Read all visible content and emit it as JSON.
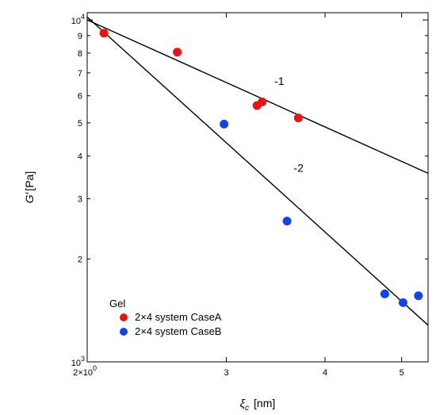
{
  "chart_data": {
    "type": "scatter",
    "title": "",
    "xlabel": {
      "symbol": "ξ",
      "sub": "c",
      "unit": "[nm]"
    },
    "ylabel": {
      "symbol": "G′",
      "unit": "[Pa]"
    },
    "xscale": "log",
    "yscale": "log",
    "xlim": [
      2,
      5.4
    ],
    "ylim": [
      1000,
      10500
    ],
    "x_ticks": [
      {
        "value": 2,
        "label": "2×10",
        "exp": "0"
      },
      {
        "value": 3,
        "label": "3"
      },
      {
        "value": 4,
        "label": "4"
      },
      {
        "value": 5,
        "label": "5"
      }
    ],
    "y_ticks": [
      {
        "value": 1000,
        "label": "10",
        "exp": "3"
      },
      {
        "value": 2000,
        "label": "2"
      },
      {
        "value": 3000,
        "label": "3"
      },
      {
        "value": 4000,
        "label": "4"
      },
      {
        "value": 5000,
        "label": "5"
      },
      {
        "value": 6000,
        "label": "6"
      },
      {
        "value": 7000,
        "label": "7"
      },
      {
        "value": 8000,
        "label": "8"
      },
      {
        "value": 9000,
        "label": "9"
      },
      {
        "value": 10000,
        "label": "10",
        "exp": "4"
      }
    ],
    "legend_title": "Gel",
    "legend_position": "bottom-left",
    "series": [
      {
        "name": "2×4 system CaseA",
        "color": "#ee1111",
        "points": [
          {
            "x": 2.1,
            "y": 9150
          },
          {
            "x": 2.6,
            "y": 8050
          },
          {
            "x": 3.28,
            "y": 5620
          },
          {
            "x": 3.33,
            "y": 5760
          },
          {
            "x": 3.7,
            "y": 5170
          }
        ]
      },
      {
        "name": "2×4 system CaseB",
        "color": "#1144ee",
        "points": [
          {
            "x": 2.98,
            "y": 4960
          },
          {
            "x": 3.58,
            "y": 2580
          },
          {
            "x": 4.76,
            "y": 1580
          },
          {
            "x": 5.02,
            "y": 1490
          },
          {
            "x": 5.25,
            "y": 1560
          }
        ]
      }
    ],
    "lines": [
      {
        "slope": -1,
        "label": "-1",
        "from": {
          "x": 2.0,
          "y": 10000
        },
        "to": {
          "x": 5.4,
          "y": 3560
        },
        "label_at": {
          "x": 3.45,
          "y": 6450
        }
      },
      {
        "slope": -2,
        "label": "-2",
        "from": {
          "x": 2.0,
          "y": 10200
        },
        "to": {
          "x": 5.4,
          "y": 1280
        },
        "label_at": {
          "x": 3.65,
          "y": 3600
        }
      }
    ]
  }
}
